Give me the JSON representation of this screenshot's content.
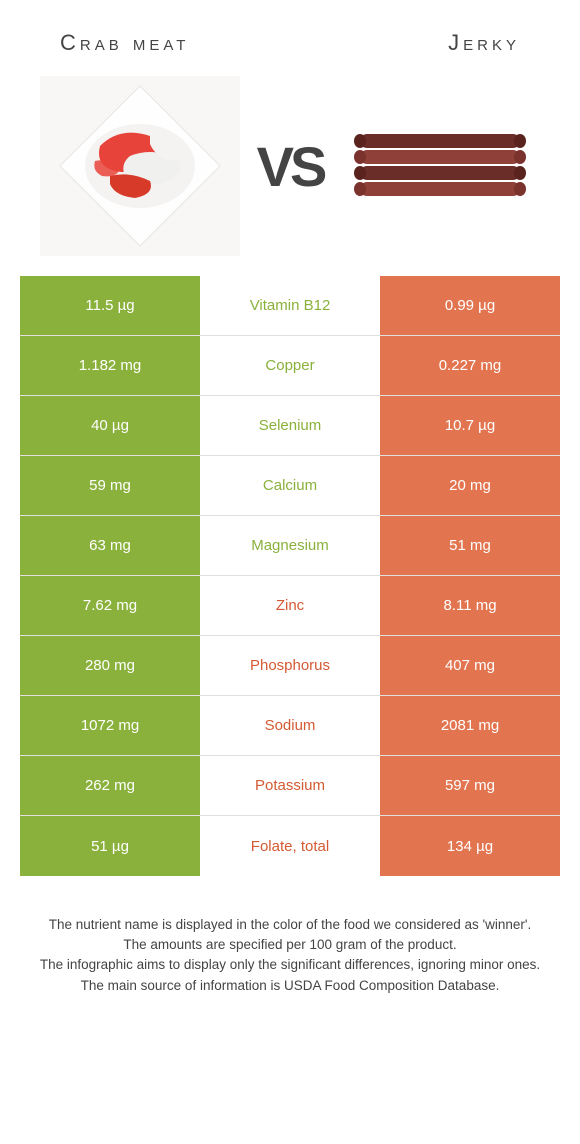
{
  "header": {
    "left_title": "Crab meat",
    "right_title": "Jerky",
    "vs_label": "VS"
  },
  "colors": {
    "green": "#8ab13c",
    "orange": "#e2744f",
    "green_text": "#8ab13c",
    "orange_text": "#d45a33",
    "row_border": "#e0e0e0",
    "crab_white": "#f5f3f1",
    "crab_red": "#d83a2a",
    "jerky_dark": "#6b2d28",
    "jerky_light": "#8f4038"
  },
  "nutrients": [
    {
      "name": "Vitamin B12",
      "left": "11.5 µg",
      "right": "0.99 µg",
      "winner": "left"
    },
    {
      "name": "Copper",
      "left": "1.182 mg",
      "right": "0.227 mg",
      "winner": "left"
    },
    {
      "name": "Selenium",
      "left": "40 µg",
      "right": "10.7 µg",
      "winner": "left"
    },
    {
      "name": "Calcium",
      "left": "59 mg",
      "right": "20 mg",
      "winner": "left"
    },
    {
      "name": "Magnesium",
      "left": "63 mg",
      "right": "51 mg",
      "winner": "left"
    },
    {
      "name": "Zinc",
      "left": "7.62 mg",
      "right": "8.11 mg",
      "winner": "right"
    },
    {
      "name": "Phosphorus",
      "left": "280 mg",
      "right": "407 mg",
      "winner": "right"
    },
    {
      "name": "Sodium",
      "left": "1072 mg",
      "right": "2081 mg",
      "winner": "right"
    },
    {
      "name": "Potassium",
      "left": "262 mg",
      "right": "597 mg",
      "winner": "right"
    },
    {
      "name": "Folate, total",
      "left": "51 µg",
      "right": "134 µg",
      "winner": "right"
    }
  ],
  "footer": {
    "line1": "The nutrient name is displayed in the color of the food we considered as 'winner'.",
    "line2": "The amounts are specified per 100 gram of the product.",
    "line3": "The infographic aims to display only the significant differences, ignoring minor ones.",
    "line4": "The main source of information is USDA Food Composition Database."
  }
}
